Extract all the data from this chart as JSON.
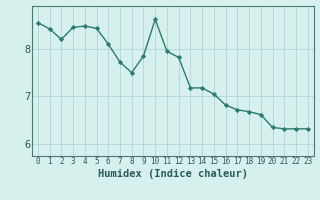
{
  "x": [
    0,
    1,
    2,
    3,
    4,
    5,
    6,
    7,
    8,
    9,
    10,
    11,
    12,
    13,
    14,
    15,
    16,
    17,
    18,
    19,
    20,
    21,
    22,
    23
  ],
  "y": [
    8.55,
    8.42,
    8.2,
    8.45,
    8.48,
    8.43,
    8.1,
    7.72,
    7.5,
    7.85,
    8.62,
    7.95,
    7.82,
    7.18,
    7.18,
    7.05,
    6.82,
    6.72,
    6.68,
    6.62,
    6.35,
    6.32,
    6.32,
    6.32
  ],
  "line_color": "#2d7a6e",
  "marker": "D",
  "marker_size": 2.2,
  "line_width": 1.0,
  "bg_color": "#d6f0ee",
  "grid_color": "#b8d8d5",
  "axis_color": "#4a7a74",
  "tick_color": "#2d5a56",
  "xlabel": "Humidex (Indice chaleur)",
  "xlabel_fontsize": 7.5,
  "xlabel_bold": true,
  "ytick_fontsize": 7.5,
  "xtick_fontsize": 5.5,
  "yticks": [
    6,
    7,
    8
  ],
  "ylim": [
    5.75,
    8.9
  ],
  "xlim": [
    -0.5,
    23.5
  ],
  "xtick_labels": [
    "0",
    "1",
    "2",
    "3",
    "4",
    "5",
    "6",
    "7",
    "8",
    "9",
    "10",
    "11",
    "12",
    "13",
    "14",
    "15",
    "16",
    "17",
    "18",
    "19",
    "20",
    "21",
    "22",
    "23"
  ]
}
